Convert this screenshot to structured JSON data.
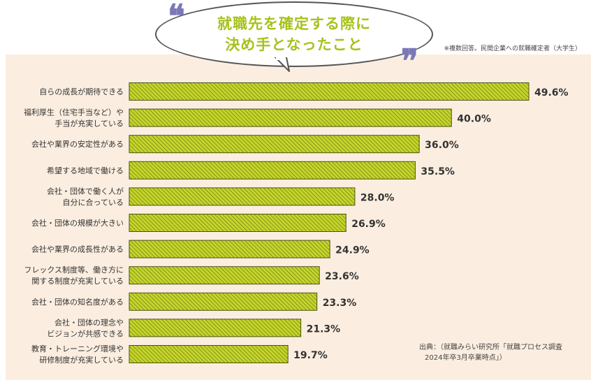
{
  "header": {
    "title_line1": "就職先を確定する際に",
    "title_line2": "決め手となったこと",
    "note": "※複数回答。民間企業への就職確定者（大学生）",
    "open_quote": "❝",
    "close_quote": "❞"
  },
  "source": {
    "line1": "出典：（就職みらい研究所「就職プロセス調査",
    "line2": "2024年卒3月卒業時点」）"
  },
  "colors": {
    "bar_fill": "#c5d52b",
    "bar_hatch": "#5e6a10",
    "panel_bg": "#fbeee0",
    "title": "#a7c21a",
    "quote": "#7b78b8"
  },
  "chart_data": {
    "type": "bar",
    "orientation": "horizontal",
    "title": "就職先を確定する際に決め手となったこと",
    "categories": [
      [
        "自らの成長が期待できる"
      ],
      [
        "福利厚生（住宅手当など）や",
        "手当が充実している"
      ],
      [
        "会社や業界の安定性がある"
      ],
      [
        "希望する地域で働ける"
      ],
      [
        "会社・団体で働く人が",
        "自分に合っている"
      ],
      [
        "会社・団体の規模が大きい"
      ],
      [
        "会社や業界の成長性がある"
      ],
      [
        "フレックス制度等、働き方に",
        "関する制度が充実している"
      ],
      [
        "会社・団体の知名度がある"
      ],
      [
        "会社・団体の理念や",
        "ビジョンが共感できる"
      ],
      [
        "教育・トレーニング環境や",
        "研修制度が充実している"
      ]
    ],
    "values": [
      49.6,
      40.0,
      36.0,
      35.5,
      28.0,
      26.9,
      24.9,
      23.6,
      23.3,
      21.3,
      19.7
    ],
    "value_labels": [
      "49.6%",
      "40.0%",
      "36.0%",
      "35.5%",
      "28.0%",
      "26.9%",
      "24.9%",
      "23.6%",
      "23.3%",
      "21.3%",
      "19.7%"
    ],
    "unit": "%",
    "xlim": [
      0,
      50
    ],
    "grid": false,
    "legend": "none"
  }
}
